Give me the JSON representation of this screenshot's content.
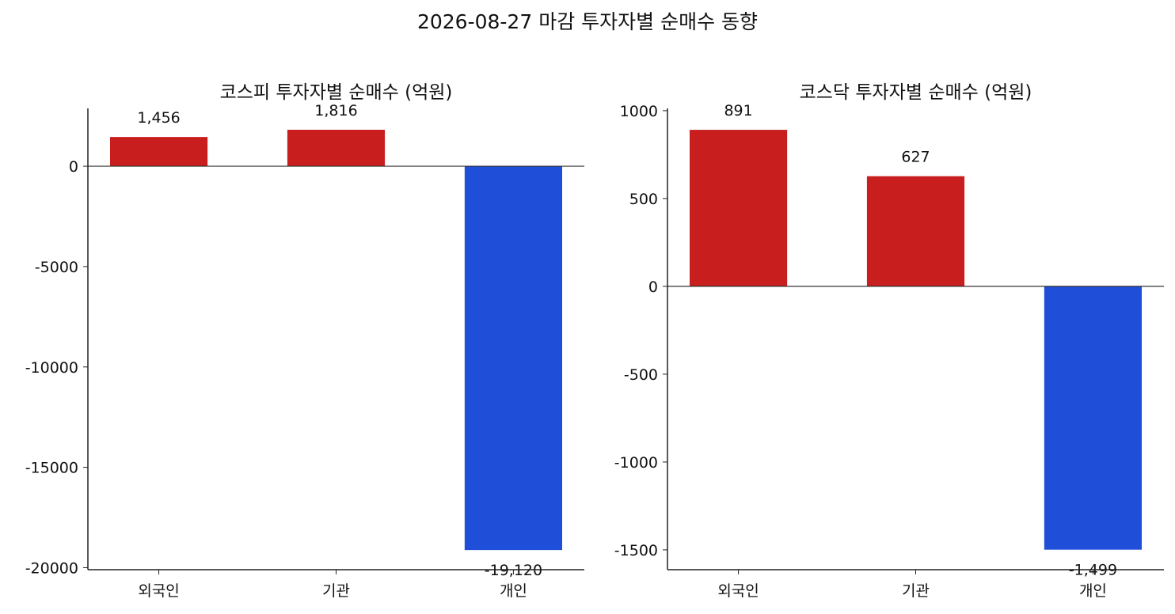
{
  "title": "2026-08-27 마감 투자자별 순매수 동향",
  "chart_data": [
    {
      "type": "bar",
      "title": "코스피 투자자별 순매수 (억원)",
      "categories": [
        "외국인",
        "기관",
        "개인"
      ],
      "values": [
        1456,
        1816,
        -19120
      ],
      "value_labels": [
        "1,456",
        "1,816",
        "-19,120"
      ],
      "colors": [
        "#c81e1e",
        "#c81e1e",
        "#1f4fd8"
      ],
      "ylim": [
        -20100,
        2880
      ],
      "yticks": [
        0,
        -5000,
        -10000,
        -15000,
        -20000
      ]
    },
    {
      "type": "bar",
      "title": "코스닥 투자자별 순매수 (억원)",
      "categories": [
        "외국인",
        "기관",
        "개인"
      ],
      "values": [
        891,
        627,
        -1499
      ],
      "value_labels": [
        "891",
        "627",
        "-1,499"
      ],
      "colors": [
        "#c81e1e",
        "#c81e1e",
        "#1f4fd8"
      ],
      "ylim": [
        -1613,
        1013
      ],
      "yticks": [
        1000,
        500,
        0,
        -500,
        -1000,
        -1500
      ]
    }
  ]
}
